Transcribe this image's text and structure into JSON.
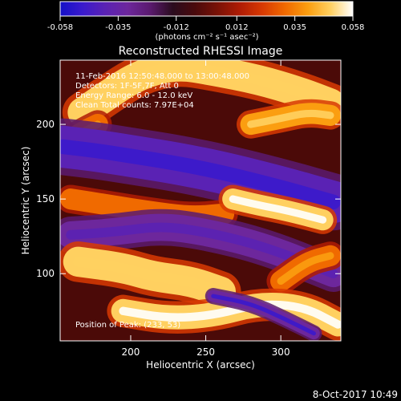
{
  "colorbar": {
    "ticks": [
      "-0.058",
      "-0.035",
      "-0.012",
      "0.012",
      "0.035",
      "0.058"
    ],
    "units": "(photons cm⁻² s⁻¹ asec⁻²)",
    "range": [
      -0.058,
      0.058
    ],
    "palette": [
      "#1410c8",
      "#3a1acc",
      "#5a22b4",
      "#6d279c",
      "#5a1a6e",
      "#2a0c1e",
      "#4a0a0c",
      "#7a1206",
      "#b01c04",
      "#d83a02",
      "#f06a00",
      "#fb9e10",
      "#ffd060",
      "#ffffff"
    ]
  },
  "chart_data": {
    "type": "heatmap",
    "title": "Reconstructed RHESSI Image",
    "xlabel": "Heliocentric X (arcsec)",
    "ylabel": "Heliocentric Y (arcsec)",
    "xlim": [
      153,
      340
    ],
    "ylim": [
      55,
      243
    ],
    "x_ticks": [
      200,
      250,
      300
    ],
    "y_ticks": [
      100,
      150,
      200
    ],
    "annotations": [
      "11-Feb-2016 12:50:48.000 to 13:00:48.000",
      "Detectors: 1F-5F,7F, Att 0",
      "Energy Range: 6.0 - 12.0 keV",
      "Clean    Total counts: 7.97E+04"
    ],
    "peak_label": "Position of Peak: (233, 53)",
    "bands": [
      {
        "kind": "bright",
        "value": 0.046,
        "points": [
          [
            168,
            208
          ],
          [
            185,
            220
          ],
          [
            205,
            233
          ],
          [
            230,
            240
          ],
          [
            255,
            236
          ],
          [
            285,
            230
          ],
          [
            312,
            222
          ],
          [
            333,
            214
          ]
        ],
        "width": 20
      },
      {
        "kind": "bright",
        "value": 0.04,
        "points": [
          [
            280,
            200
          ],
          [
            300,
            204
          ],
          [
            318,
            208
          ],
          [
            333,
            206
          ]
        ],
        "width": 14
      },
      {
        "kind": "bright",
        "value": 0.034,
        "points": [
          [
            160,
            190
          ],
          [
            170,
            196
          ],
          [
            178,
            200
          ]
        ],
        "width": 14
      },
      {
        "kind": "dark",
        "value": -0.038,
        "points": [
          [
            155,
            185
          ],
          [
            180,
            182
          ],
          [
            205,
            178
          ],
          [
            230,
            174
          ],
          [
            260,
            168
          ],
          [
            300,
            158
          ],
          [
            335,
            148
          ]
        ],
        "width": 28
      },
      {
        "kind": "bright",
        "value": 0.03,
        "points": [
          [
            160,
            150
          ],
          [
            185,
            146
          ],
          [
            210,
            142
          ],
          [
            240,
            138
          ],
          [
            262,
            140
          ]
        ],
        "width": 14
      },
      {
        "kind": "bright",
        "value": 0.05,
        "points": [
          [
            268,
            150
          ],
          [
            285,
            146
          ],
          [
            305,
            142
          ],
          [
            328,
            136
          ]
        ],
        "width": 14
      },
      {
        "kind": "dark",
        "value": -0.032,
        "points": [
          [
            160,
            126
          ],
          [
            190,
            128
          ],
          [
            220,
            132
          ],
          [
            250,
            128
          ],
          [
            290,
            118
          ],
          [
            335,
            100
          ]
        ],
        "width": 18
      },
      {
        "kind": "bright",
        "value": 0.045,
        "points": [
          [
            165,
            108
          ],
          [
            195,
            104
          ],
          [
            215,
            98
          ],
          [
            240,
            95
          ],
          [
            260,
            88
          ]
        ],
        "width": 20
      },
      {
        "kind": "bright",
        "value": 0.034,
        "points": [
          [
            300,
            95
          ],
          [
            318,
            108
          ],
          [
            333,
            112
          ]
        ],
        "width": 14
      },
      {
        "kind": "bright",
        "value": 0.052,
        "points": [
          [
            195,
            75
          ],
          [
            225,
            70
          ],
          [
            255,
            72
          ],
          [
            285,
            80
          ],
          [
            315,
            78
          ],
          [
            338,
            66
          ]
        ],
        "width": 16
      },
      {
        "kind": "dark",
        "value": -0.035,
        "points": [
          [
            255,
            85
          ],
          [
            280,
            80
          ],
          [
            302,
            70
          ],
          [
            322,
            60
          ]
        ],
        "width": 8
      }
    ],
    "timestamp": "8-Oct-2017 10:49"
  }
}
